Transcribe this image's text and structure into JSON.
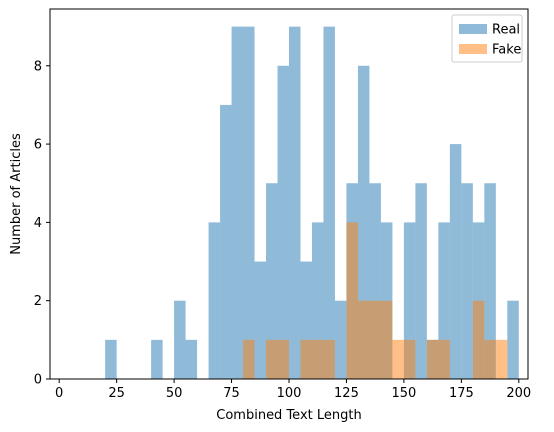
{
  "chart_data": {
    "type": "bar",
    "xlabel": "Combined Text Length",
    "ylabel": "Number of Articles",
    "xlim": [
      -4,
      204
    ],
    "ylim": [
      0,
      9.45
    ],
    "x_ticks": [
      0,
      25,
      50,
      75,
      100,
      125,
      150,
      175,
      200
    ],
    "y_ticks": [
      0,
      2,
      4,
      6,
      8
    ],
    "legend_position": "top-right",
    "series": [
      {
        "name": "Real",
        "color": "#1f77b4",
        "alpha": 0.5,
        "bin_width": 5,
        "bin_start": 0,
        "values": [
          0,
          0,
          0,
          0,
          1,
          0,
          0,
          0,
          1,
          0,
          2,
          1,
          0,
          4,
          7,
          9,
          9,
          3,
          5,
          8,
          9,
          3,
          4,
          9,
          2,
          5,
          8,
          5,
          4,
          0,
          4,
          5,
          1,
          4,
          6,
          5,
          4,
          5,
          0,
          2
        ]
      },
      {
        "name": "Fake",
        "color": "#ff7f0e",
        "alpha": 0.5,
        "bin_width": 5,
        "bin_start": 0,
        "values": [
          0,
          0,
          0,
          0,
          0,
          0,
          0,
          0,
          0,
          0,
          0,
          0,
          0,
          0,
          0,
          0,
          1,
          0,
          1,
          1,
          0,
          1,
          1,
          1,
          0,
          4,
          2,
          2,
          2,
          1,
          1,
          0,
          1,
          1,
          0,
          0,
          2,
          1,
          1,
          0
        ]
      }
    ]
  }
}
